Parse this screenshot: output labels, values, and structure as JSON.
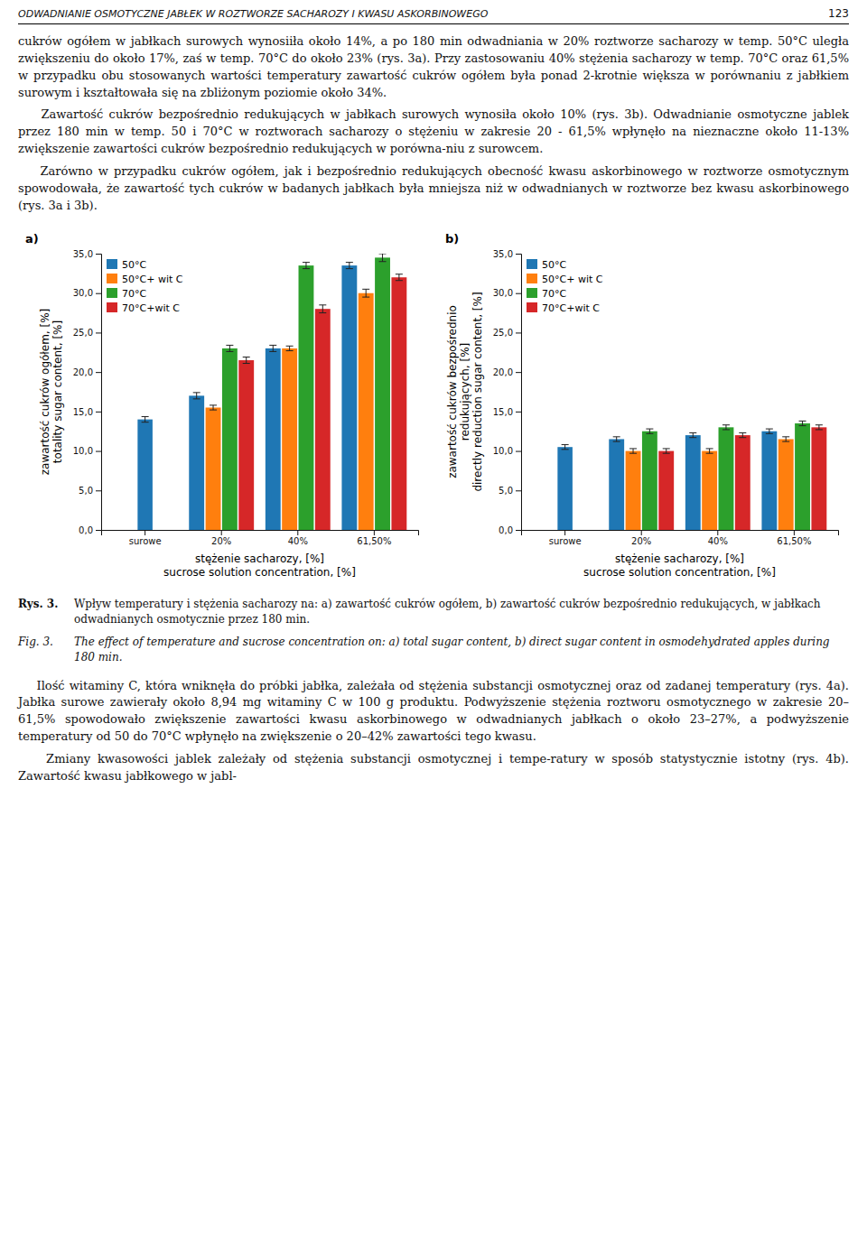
{
  "header": {
    "text": "ODWADNIANIE OSMOTYCZNE JABŁEK W ROZTWORZE SACHAROZY I KWASU ASKORBINOWEGO",
    "page": "123"
  },
  "body_paragraphs": [
    "cukrów ogółem w jabłkach surowych wynosiiła około 14%, a po 180 min odwadniania w 20% roztworze sacharozy w temp. 50°C uległa zwiększeniu do około 17%, zaś w temp. 70°C do około 23% (rys. 3a). Przy zastosowaniu 40% stężenia sacharozy w temp. 70°C oraz 61,5% w przypadku obu stosowanych wartości temperatury zawartość cukrów ogółem była ponad 2-krotnie większa w porównaniu z jabłkiem surowym i kształtowała się na zbliżonym poziomie około 34%.",
    "    Zawartość cukrów bezpośrednio redukujących w jabłkach surowych wynosiła około 10% (rys. 3b). Odwadnianie osmotyczne jablek przez 180 min w temp. 50 i 70°C w roztworach sacharozy o stężeniu w zakresie 20 - 61,5% wpłynęło na nieznaczne około 11-13% zwiększenie zawartości cukrów bezpośrednio redukujących w porówna-niu z surowcem.",
    "    Zarówno w przypadku cukrów ogółem, jak i bezpośrednio redukujących obecność kwasu askorbinowego w roztworze osmotycznym spowodowała, że zawartość tych cukrów w badanych jabłkach była mniejsza niż w odwadnianych w roztworze bez kwasu askorbinowego (rys. 3a i 3b)."
  ],
  "captions": [
    {
      "label": "Rys. 3.",
      "text": "Wpływ temperatury i stężenia sacharozy na: a) zawartość cukrów ogółem, b) zawartość cukrów bezpośrednio redukujących, w jabłkach odwadnianych osmotycznie przez 180 min."
    },
    {
      "label": "Fig. 3.",
      "text": "The effect of temperature and sucrose concentration on: a) total sugar content, b) direct sugar content in osmodehydrated apples during 180 min."
    }
  ],
  "body2_paragraphs": [
    "    Ilość witaminy C, która wniknęła do próbki jabłka, zależała od stężenia substancji osmotycznej oraz od zadanej temperatury (rys. 4a). Jabłka surowe zawierały około 8,94 mg witaminy C w 100 g produktu. Podwyższenie stężenia roztworu osmotycznego w zakresie 20–61,5% spowodowało zwiększenie zawartości kwasu askorbinowego w odwadnianych jabłkach o około 23–27%, a podwyższenie temperatury od 50 do 70°C wpłynęło na zwiększenie o 20–42% zawartości tego kwasu.",
    "    Zmiany kwasowości jablek zależały od stężenia substancji osmotycznej i tempe-ratury w sposób statystycznie istotny (rys. 4b). Zawartość kwasu jabłkowego w jabl-"
  ],
  "chart_data": [
    {
      "type": "bar",
      "title": "a)",
      "ylabel": "zawartość cukrów ogółem, [%]\ntotality sugar content, [%]",
      "xlabel": "stężenie sacharozy, [%]\nsucrose solution concentration, [%]",
      "categories": [
        "surowe",
        "20%",
        "40%",
        "61,50%"
      ],
      "series": [
        {
          "name": "50°C",
          "values": [
            14.0,
            17.0,
            23.0,
            33.5
          ],
          "errors": [
            0.35,
            0.4,
            0.4,
            0.4
          ]
        },
        {
          "name": "50°C+ wit C",
          "values": [
            null,
            15.5,
            23.0,
            30.0
          ],
          "errors": [
            null,
            0.3,
            0.3,
            0.5
          ]
        },
        {
          "name": "70°C",
          "values": [
            null,
            23.0,
            33.5,
            34.5
          ],
          "errors": [
            null,
            0.4,
            0.4,
            0.5
          ]
        },
        {
          "name": "70°C+wit C",
          "values": [
            null,
            21.5,
            28.0,
            32.0
          ],
          "errors": [
            null,
            0.4,
            0.5,
            0.4
          ]
        }
      ],
      "ylim": [
        0,
        35
      ],
      "yticks": [
        {
          "value": 0.0,
          "label": "0,0"
        },
        {
          "value": 5.0,
          "label": "5,0"
        },
        {
          "value": 10.0,
          "label": "10,0"
        },
        {
          "value": 15.0,
          "label": "15,0"
        },
        {
          "value": 20.0,
          "label": "20,0"
        },
        {
          "value": 25.0,
          "label": "25,0"
        },
        {
          "value": 30.0,
          "label": "30,0"
        },
        {
          "value": 35.0,
          "label": "35,0"
        }
      ],
      "grid": false,
      "legend": "upper left"
    },
    {
      "type": "bar",
      "title": "b)",
      "ylabel": "zawartość cukrów bezpośrednio\nredukujących, [%]\ndirectly reduction sugar content, [%]",
      "xlabel": "stężenie sacharozy, [%]\nsucrose solution concentration, [%]",
      "categories": [
        "surowe",
        "20%",
        "40%",
        "61,50%"
      ],
      "series": [
        {
          "name": "50°C",
          "values": [
            10.5,
            11.5,
            12.0,
            12.5
          ],
          "errors": [
            0.3,
            0.3,
            0.3,
            0.3
          ]
        },
        {
          "name": "50°C+ wit C",
          "values": [
            null,
            10.0,
            10.0,
            11.5
          ],
          "errors": [
            null,
            0.3,
            0.3,
            0.3
          ]
        },
        {
          "name": "70°C",
          "values": [
            null,
            12.5,
            13.0,
            13.5
          ],
          "errors": [
            null,
            0.3,
            0.3,
            0.3
          ]
        },
        {
          "name": "70°C+wit C",
          "values": [
            null,
            10.0,
            12.0,
            13.0
          ],
          "errors": [
            null,
            0.3,
            0.3,
            0.3
          ]
        }
      ],
      "ylim": [
        0,
        35
      ],
      "yticks": [
        {
          "value": 0.0,
          "label": "0,0"
        },
        {
          "value": 5.0,
          "label": "5,0"
        },
        {
          "value": 10.0,
          "label": "10,0"
        },
        {
          "value": 15.0,
          "label": "15,0"
        },
        {
          "value": 20.0,
          "label": "20,0"
        },
        {
          "value": 25.0,
          "label": "25,0"
        },
        {
          "value": 30.0,
          "label": "30,0"
        },
        {
          "value": 35.0,
          "label": "35,0"
        }
      ],
      "grid": false,
      "legend": "upper left"
    }
  ]
}
